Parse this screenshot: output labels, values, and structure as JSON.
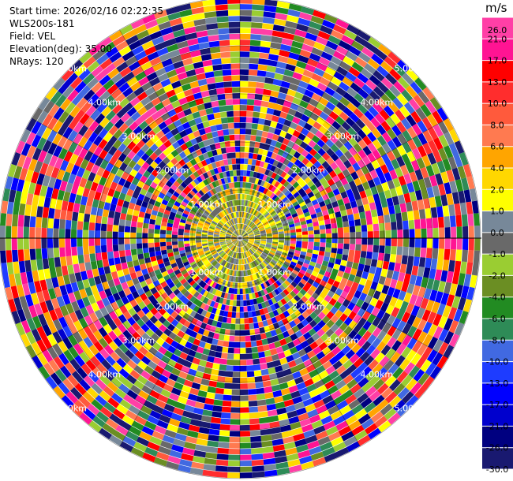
{
  "header": {
    "start_time": "Start time: 2026/02/16 02:22:35",
    "site": "WLS200s-181",
    "field": "Field: VEL",
    "elevation": "Elevation(deg): 35.00",
    "nrays": "NRays: 120"
  },
  "ppi": {
    "range_labels": [
      "1.00km",
      "2.00km",
      "3.00km",
      "4.00km",
      "5.00km"
    ]
  },
  "colorbar": {
    "unit": "m/s",
    "levels": [
      {
        "label": "26.0",
        "color": "#ff3fa6"
      },
      {
        "label": "21.0",
        "color": "#ff1493"
      },
      {
        "label": "17.0",
        "color": "#ff0000"
      },
      {
        "label": "13.0",
        "color": "#ff2d2d"
      },
      {
        "label": "10.0",
        "color": "#ff5a3c"
      },
      {
        "label": "8.0",
        "color": "#ff7a50"
      },
      {
        "label": "6.0",
        "color": "#ffa500"
      },
      {
        "label": "4.0",
        "color": "#ffd700"
      },
      {
        "label": "2.0",
        "color": "#ffff00"
      },
      {
        "label": "1.0",
        "color": "#778899"
      },
      {
        "label": "0.0",
        "color": "#696969"
      },
      {
        "label": "-1.0",
        "color": "#9acd32"
      },
      {
        "label": "-2.0",
        "color": "#6b8e23"
      },
      {
        "label": "-4.0",
        "color": "#228b22"
      },
      {
        "label": "-6.0",
        "color": "#2e8b57"
      },
      {
        "label": "-8.0",
        "color": "#4169e1"
      },
      {
        "label": "-10.0",
        "color": "#1e3cff"
      },
      {
        "label": "-13.0",
        "color": "#0000ff"
      },
      {
        "label": "-17.0",
        "color": "#0000cd"
      },
      {
        "label": "-21.0",
        "color": "#000080"
      },
      {
        "label": "-26.0",
        "color": "#191970"
      },
      {
        "label": "-30.0",
        "color": "#191970"
      }
    ]
  }
}
